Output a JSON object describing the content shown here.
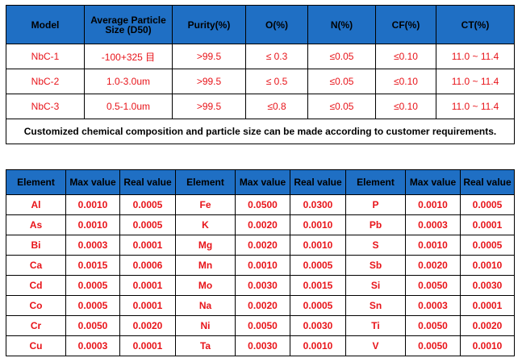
{
  "spec_table": {
    "headers": [
      "Model",
      "Average Particle Size (D50)",
      "Purity(%)",
      "O(%)",
      "N(%)",
      "CF(%)",
      "CT(%)"
    ],
    "rows": [
      [
        "NbC-1",
        "-100+325 目",
        ">99.5",
        "≤ 0.3",
        "≤0.05",
        "≤0.10",
        "11.0 ~ 11.4"
      ],
      [
        "NbC-2",
        "1.0-3.0um",
        ">99.5",
        "≤ 0.5",
        "≤0.05",
        "≤0.10",
        "11.0 ~ 11.4"
      ],
      [
        "NbC-3",
        "0.5-1.0um",
        ">99.5",
        "≤0.8",
        "≤0.05",
        "≤0.10",
        "11.0 ~ 11.4"
      ]
    ],
    "note": "Customized chemical composition and particle size can be made according to customer requirements."
  },
  "impurity_table": {
    "headers": [
      "Element",
      "Max value",
      "Real value",
      "Element",
      "Max value",
      "Real value",
      "Element",
      "Max value",
      "Real value"
    ],
    "rows": [
      [
        "Al",
        "0.0010",
        "0.0005",
        "Fe",
        "0.0500",
        "0.0300",
        "P",
        "0.0010",
        "0.0005"
      ],
      [
        "As",
        "0.0010",
        "0.0005",
        "K",
        "0.0020",
        "0.0010",
        "Pb",
        "0.0003",
        "0.0001"
      ],
      [
        "Bi",
        "0.0003",
        "0.0001",
        "Mg",
        "0.0020",
        "0.0010",
        "S",
        "0.0010",
        "0.0005"
      ],
      [
        "Ca",
        "0.0015",
        "0.0006",
        "Mn",
        "0.0010",
        "0.0005",
        "Sb",
        "0.0020",
        "0.0010"
      ],
      [
        "Cd",
        "0.0005",
        "0.0001",
        "Mo",
        "0.0030",
        "0.0015",
        "Si",
        "0.0050",
        "0.0030"
      ],
      [
        "Co",
        "0.0005",
        "0.0001",
        "Na",
        "0.0020",
        "0.0005",
        "Sn",
        "0.0003",
        "0.0001"
      ],
      [
        "Cr",
        "0.0050",
        "0.0020",
        "Ni",
        "0.0050",
        "0.0030",
        "Ti",
        "0.0050",
        "0.0020"
      ],
      [
        "Cu",
        "0.0003",
        "0.0001",
        "Ta",
        "0.0030",
        "0.0010",
        "V",
        "0.0050",
        "0.0010"
      ]
    ]
  },
  "colors": {
    "header_bg": "#1f6fc4",
    "value_text": "#e8141a",
    "border": "#000000"
  }
}
